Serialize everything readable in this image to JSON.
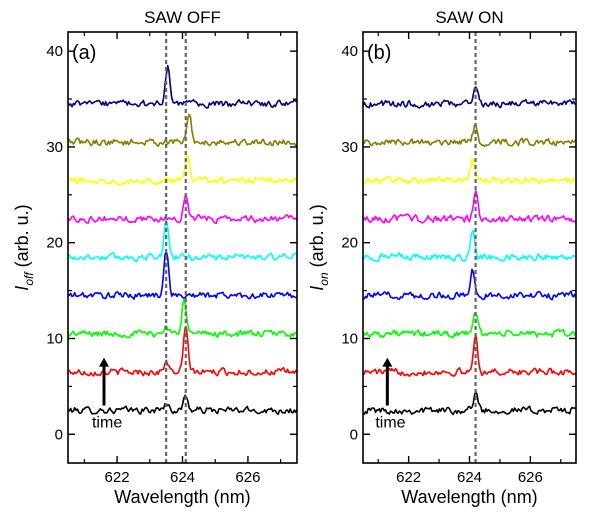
{
  "chart_data": [
    {
      "type": "line",
      "title": "SAW OFF",
      "panel_label": "(a)",
      "xlabel": "Wavelength (nm)",
      "ylabel_main": "I",
      "ylabel_sub": "off",
      "ylabel_tail": " (arb. u.)",
      "xlim": [
        620.5,
        627.5
      ],
      "ylim": [
        -3,
        42
      ],
      "xticks": [
        622,
        624,
        626
      ],
      "yticks": [
        0,
        10,
        20,
        30,
        40
      ],
      "grid": false,
      "time_label": "time",
      "time_arrow": {
        "x": 621.6,
        "y_from": 3,
        "y_to": 8
      },
      "reference_lines": [
        623.5,
        624.1
      ],
      "series": [
        {
          "color": "#000000",
          "offset": 2.5,
          "peaks": [
            {
              "x": 624.1,
              "h": 1.5
            },
            {
              "x": 623.5,
              "h": 0.8
            }
          ]
        },
        {
          "color": "#ff0000",
          "offset": 6.5,
          "peaks": [
            {
              "x": 624.1,
              "h": 4.5
            },
            {
              "x": 623.5,
              "h": 1.0
            }
          ]
        },
        {
          "color": "#00ff00",
          "offset": 10.5,
          "peaks": [
            {
              "x": 624.05,
              "h": 4.0
            },
            {
              "x": 623.5,
              "h": 0.8
            }
          ]
        },
        {
          "color": "#0000ff",
          "offset": 14.5,
          "peaks": [
            {
              "x": 623.5,
              "h": 4.8
            }
          ]
        },
        {
          "color": "#00ffff",
          "offset": 18.5,
          "peaks": [
            {
              "x": 623.5,
              "h": 3.8
            }
          ]
        },
        {
          "color": "#ff00ff",
          "offset": 22.5,
          "peaks": [
            {
              "x": 624.1,
              "h": 2.3
            }
          ]
        },
        {
          "color": "#ffff00",
          "offset": 26.5,
          "peaks": [
            {
              "x": 624.15,
              "h": 2.5
            }
          ]
        },
        {
          "color": "#808000",
          "offset": 30.5,
          "peaks": [
            {
              "x": 624.2,
              "h": 2.8
            }
          ]
        },
        {
          "color": "#000080",
          "offset": 34.5,
          "peaks": [
            {
              "x": 623.55,
              "h": 3.8
            }
          ]
        }
      ]
    },
    {
      "type": "line",
      "title": "SAW ON",
      "panel_label": "(b)",
      "xlabel": "Wavelength (nm)",
      "ylabel_main": "I",
      "ylabel_sub": "on",
      "ylabel_tail": " (arb. u.)",
      "xlim": [
        620.5,
        627.5
      ],
      "ylim": [
        -3,
        42
      ],
      "xticks": [
        622,
        624,
        626
      ],
      "yticks": [
        0,
        10,
        20,
        30,
        40
      ],
      "grid": false,
      "time_label": "time",
      "time_arrow": {
        "x": 621.3,
        "y_from": 3,
        "y_to": 8
      },
      "reference_lines": [
        624.2
      ],
      "series": [
        {
          "color": "#000000",
          "offset": 2.5,
          "peaks": [
            {
              "x": 624.2,
              "h": 2.0
            }
          ]
        },
        {
          "color": "#ff0000",
          "offset": 6.5,
          "peaks": [
            {
              "x": 624.2,
              "h": 3.8
            }
          ]
        },
        {
          "color": "#00ff00",
          "offset": 10.5,
          "peaks": [
            {
              "x": 624.2,
              "h": 2.2
            }
          ]
        },
        {
          "color": "#0000ff",
          "offset": 14.5,
          "peaks": [
            {
              "x": 624.1,
              "h": 2.5
            }
          ]
        },
        {
          "color": "#00ffff",
          "offset": 18.5,
          "peaks": [
            {
              "x": 624.1,
              "h": 2.8
            }
          ]
        },
        {
          "color": "#ff00ff",
          "offset": 22.5,
          "peaks": [
            {
              "x": 624.2,
              "h": 2.8
            }
          ]
        },
        {
          "color": "#ffff00",
          "offset": 26.5,
          "peaks": [
            {
              "x": 624.1,
              "h": 2.2
            }
          ]
        },
        {
          "color": "#808000",
          "offset": 30.5,
          "peaks": [
            {
              "x": 624.2,
              "h": 2.0
            }
          ]
        },
        {
          "color": "#000080",
          "offset": 34.5,
          "peaks": [
            {
              "x": 624.2,
              "h": 1.8
            }
          ]
        }
      ]
    }
  ]
}
